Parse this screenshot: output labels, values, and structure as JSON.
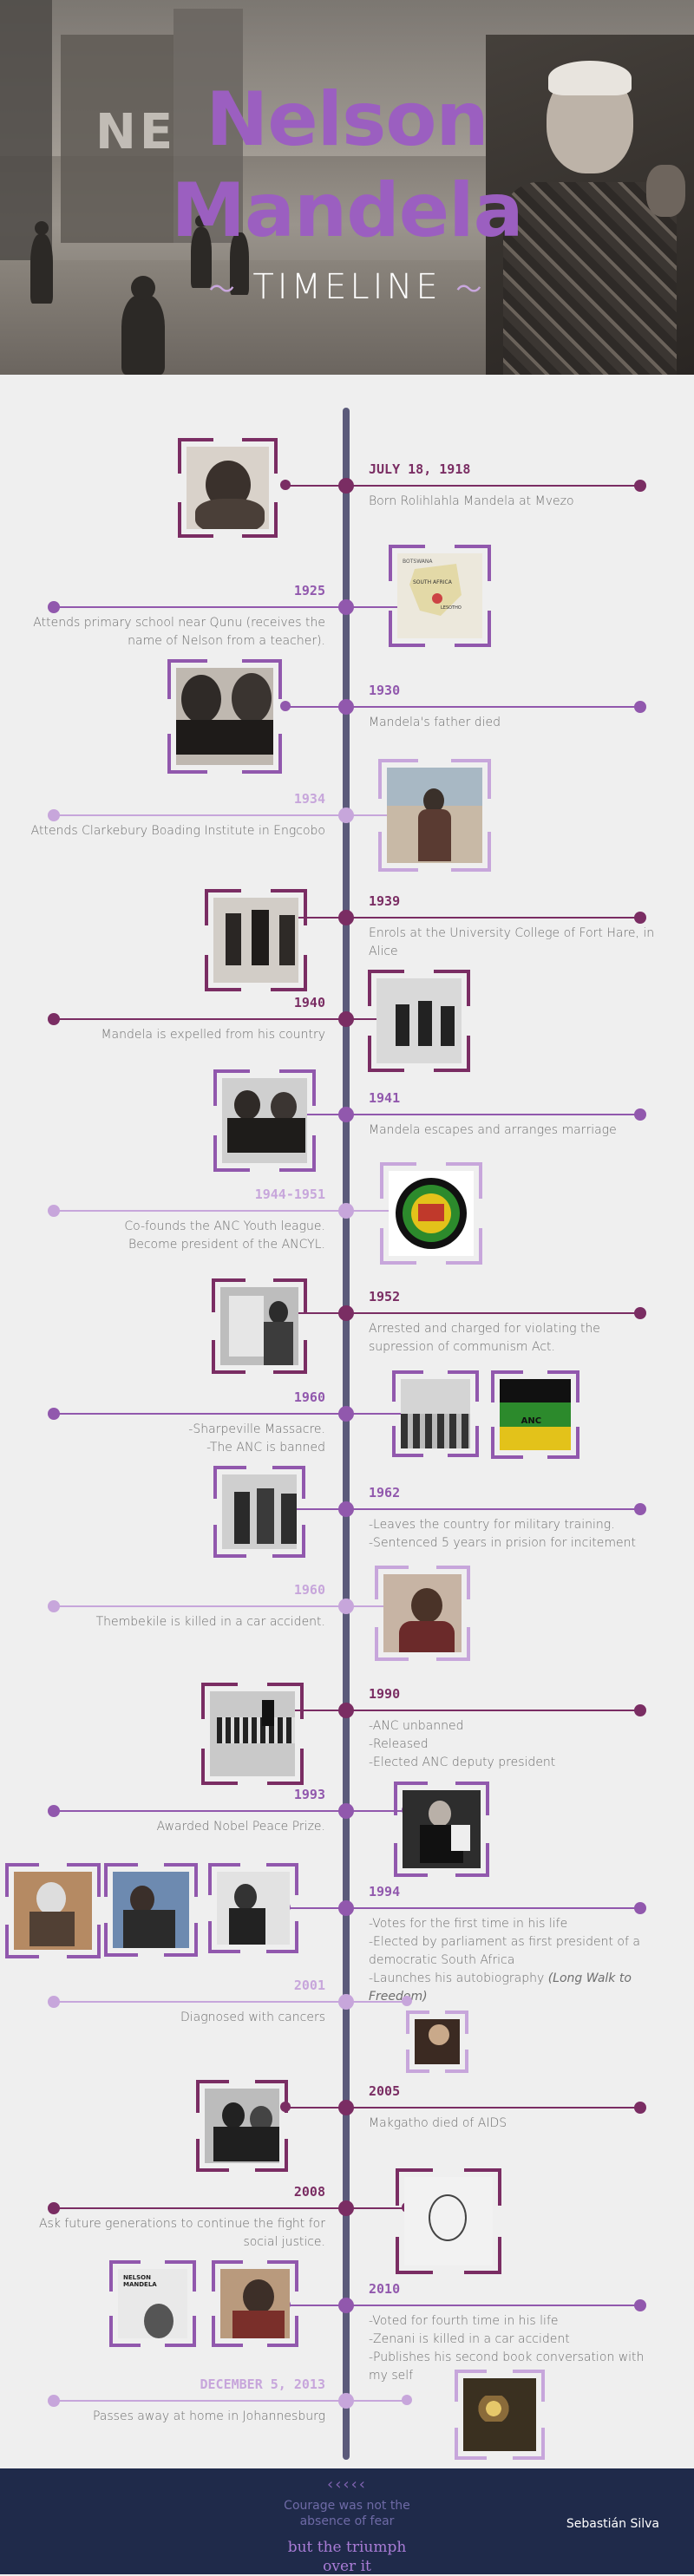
{
  "header": {
    "title_line1": "Nelson",
    "title_line2": "Mandela",
    "subtitle": "TIMELINE",
    "swash_left": "〜",
    "swash_right": "〜",
    "sign_text": "NE"
  },
  "colors": {
    "dark": "#7a2d63",
    "medium": "#9158ad",
    "light": "#c7a6db",
    "axis": "#5b5a7a",
    "footer_bg": "#1f2a4a"
  },
  "events": [
    {
      "year": "JULY 18, 1918",
      "text": "Born Rolihlahla Mandela at Mvezo"
    },
    {
      "year": "1925",
      "text": "Attends primary school near Qunu (receives the name of Nelson from a teacher)."
    },
    {
      "year": "1930",
      "text": "Mandela's father died"
    },
    {
      "year": "1934",
      "text": "Attends Clarkebury Boading Institute in Engcobo"
    },
    {
      "year": "1939",
      "text": "Enrols at the University College of Fort Hare, in Alice"
    },
    {
      "year": "1940",
      "text": "Mandela is expelled from his country"
    },
    {
      "year": "1941",
      "text": "Mandela escapes and arranges marriage"
    },
    {
      "year": "1944-1951",
      "text1": "Co-founds the ANC Youth league.",
      "text2": "Become president of the ANCYL."
    },
    {
      "year": "1952",
      "text": "Arrested and charged for violating the supression of communism Act."
    },
    {
      "year": "1960",
      "text1": "-Sharpeville Massacre.",
      "text2": "-The ANC is banned"
    },
    {
      "year": "1962",
      "text1": "-Leaves the country for military training.",
      "text2": "-Sentenced 5 years in prision for incitement"
    },
    {
      "year": "1960",
      "text": "Thembekile is killed in a car accident."
    },
    {
      "year": "1990",
      "text1": "-ANC unbanned",
      "text2": "-Released",
      "text3": "-Elected ANC deputy president"
    },
    {
      "year": "1993",
      "text": "Awarded Nobel Peace Prize."
    },
    {
      "year": "1994",
      "text1": "-Votes for the first time in his life",
      "text2": "-Elected by parliament as first president of a democratic South Africa",
      "text3": "-Launches his autobiography",
      "text3_italic": "(Long Walk to Freedom)"
    },
    {
      "year": "2001",
      "text": "Diagnosed with cancers"
    },
    {
      "year": "2005",
      "text": "Makgatho died of AIDS"
    },
    {
      "year": "2008",
      "text": "Ask future generations to continue the fight for social justice."
    },
    {
      "year": "2010",
      "text1": "-Voted for fourth time in his life",
      "text2": "-Zenani is killed in a car accident",
      "text3": "-Publishes his second book conversation with my self"
    },
    {
      "year": "DECEMBER 5, 2013",
      "text": "Passes away at home in Johannesburg"
    }
  ],
  "photo_labels": {
    "map_botswana": "BOTSWANA",
    "map_south_africa": "SOUTH AFRICA",
    "map_lesotho": "LESOTHO",
    "anc_flag": "ANC",
    "book_title": "NELSON MANDELA"
  },
  "footer": {
    "chevrons": "‹‹‹‹‹",
    "quote_line1": "Courage was not the",
    "quote_line2": "absence of fear",
    "quote_line3": "but the triumph",
    "quote_line4": "over it",
    "author": "Sebastián Silva"
  }
}
